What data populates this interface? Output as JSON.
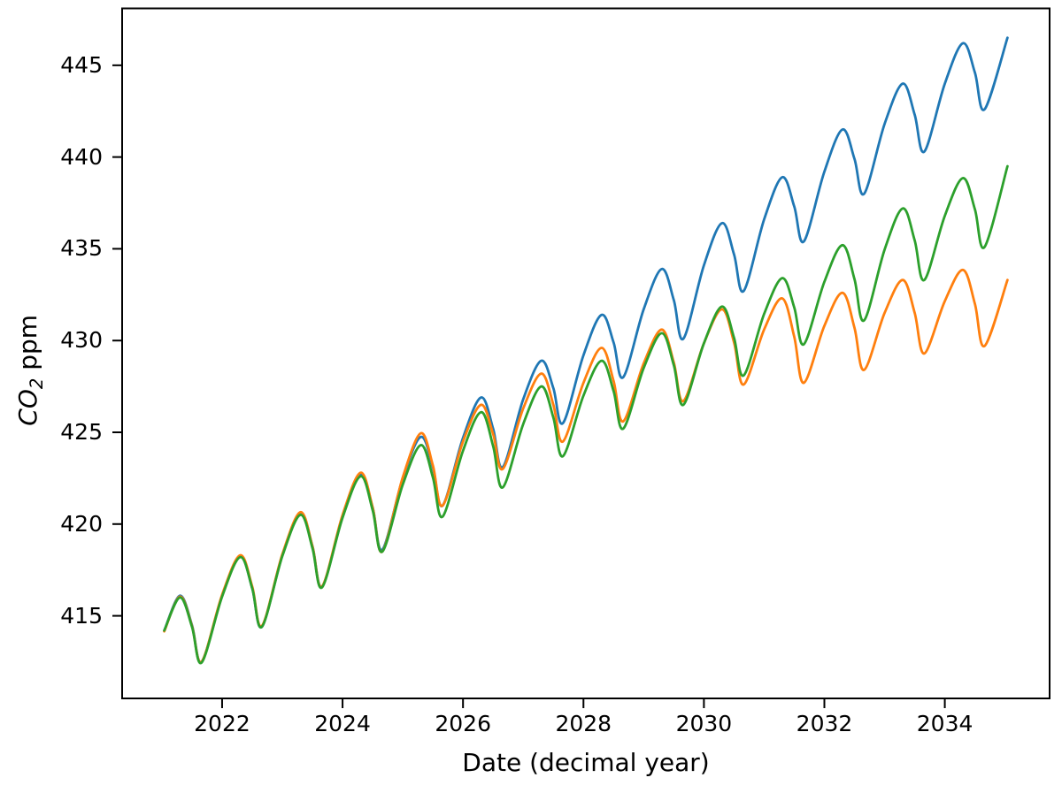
{
  "figure": {
    "xlabel": "Date (decimal year)",
    "ylabel_math": "CO",
    "ylabel_sub": "2",
    "ylabel_unit": " ppm",
    "background_color": "#ffffff",
    "spine_color": "#000000"
  },
  "chart_data": {
    "type": "line",
    "title": "",
    "xlabel": "Date (decimal year)",
    "ylabel": "CO2 ppm",
    "xlim": [
      2020.34,
      2035.74
    ],
    "ylim": [
      410.5,
      448.1
    ],
    "x_ticks": [
      2022,
      2024,
      2026,
      2028,
      2030,
      2032,
      2034
    ],
    "y_ticks": [
      415,
      420,
      425,
      430,
      435,
      440,
      445
    ],
    "grid": false,
    "legend": "none",
    "series": [
      {
        "name": "blue",
        "color": "#1f77b4",
        "points": [
          [
            2021.04,
            414.2
          ],
          [
            2021.3,
            416.1
          ],
          [
            2021.5,
            414.5
          ],
          [
            2021.66,
            412.5
          ],
          [
            2022.0,
            416.1
          ],
          [
            2022.3,
            418.25
          ],
          [
            2022.5,
            416.5
          ],
          [
            2022.66,
            414.4
          ],
          [
            2023.0,
            418.3
          ],
          [
            2023.3,
            420.6
          ],
          [
            2023.5,
            418.8
          ],
          [
            2023.66,
            416.6
          ],
          [
            2024.0,
            420.4
          ],
          [
            2024.3,
            422.7
          ],
          [
            2024.5,
            420.9
          ],
          [
            2024.66,
            418.6
          ],
          [
            2025.0,
            422.5
          ],
          [
            2025.3,
            424.75
          ],
          [
            2025.5,
            423.1
          ],
          [
            2025.66,
            421.0
          ],
          [
            2026.0,
            424.7
          ],
          [
            2026.3,
            426.9
          ],
          [
            2026.5,
            425.2
          ],
          [
            2026.66,
            423.1
          ],
          [
            2027.0,
            426.8
          ],
          [
            2027.3,
            428.9
          ],
          [
            2027.5,
            427.4
          ],
          [
            2027.66,
            425.5
          ],
          [
            2028.0,
            429.2
          ],
          [
            2028.3,
            431.4
          ],
          [
            2028.5,
            429.9
          ],
          [
            2028.66,
            428.0
          ],
          [
            2029.0,
            431.7
          ],
          [
            2029.3,
            433.9
          ],
          [
            2029.5,
            432.2
          ],
          [
            2029.66,
            430.1
          ],
          [
            2030.0,
            434.1
          ],
          [
            2030.3,
            436.4
          ],
          [
            2030.5,
            434.7
          ],
          [
            2030.66,
            432.7
          ],
          [
            2031.0,
            436.6
          ],
          [
            2031.3,
            438.9
          ],
          [
            2031.5,
            437.3
          ],
          [
            2031.66,
            435.4
          ],
          [
            2032.0,
            439.2
          ],
          [
            2032.3,
            441.5
          ],
          [
            2032.5,
            439.9
          ],
          [
            2032.66,
            438.0
          ],
          [
            2033.0,
            441.8
          ],
          [
            2033.3,
            444.0
          ],
          [
            2033.5,
            442.3
          ],
          [
            2033.66,
            440.3
          ],
          [
            2034.0,
            444.0
          ],
          [
            2034.3,
            446.2
          ],
          [
            2034.5,
            444.6
          ],
          [
            2034.66,
            442.6
          ],
          [
            2035.04,
            446.5
          ]
        ]
      },
      {
        "name": "orange",
        "color": "#ff7f0e",
        "points": [
          [
            2021.04,
            414.15
          ],
          [
            2021.3,
            416.05
          ],
          [
            2021.5,
            414.45
          ],
          [
            2021.66,
            412.5
          ],
          [
            2022.0,
            416.15
          ],
          [
            2022.3,
            418.3
          ],
          [
            2022.5,
            416.6
          ],
          [
            2022.66,
            414.45
          ],
          [
            2023.0,
            418.35
          ],
          [
            2023.3,
            420.65
          ],
          [
            2023.5,
            418.8
          ],
          [
            2023.66,
            416.6
          ],
          [
            2024.0,
            420.5
          ],
          [
            2024.3,
            422.8
          ],
          [
            2024.5,
            420.9
          ],
          [
            2024.66,
            418.5
          ],
          [
            2025.0,
            422.55
          ],
          [
            2025.3,
            424.95
          ],
          [
            2025.5,
            423.2
          ],
          [
            2025.66,
            421.0
          ],
          [
            2026.0,
            424.5
          ],
          [
            2026.3,
            426.5
          ],
          [
            2026.5,
            424.9
          ],
          [
            2026.66,
            423.0
          ],
          [
            2027.0,
            426.3
          ],
          [
            2027.3,
            428.2
          ],
          [
            2027.5,
            426.5
          ],
          [
            2027.66,
            424.5
          ],
          [
            2028.0,
            427.7
          ],
          [
            2028.3,
            429.6
          ],
          [
            2028.5,
            427.8
          ],
          [
            2028.66,
            425.6
          ],
          [
            2029.0,
            428.75
          ],
          [
            2029.3,
            430.6
          ],
          [
            2029.5,
            428.8
          ],
          [
            2029.66,
            426.7
          ],
          [
            2030.0,
            429.85
          ],
          [
            2030.3,
            431.7
          ],
          [
            2030.5,
            429.9
          ],
          [
            2030.66,
            427.6
          ],
          [
            2031.0,
            430.6
          ],
          [
            2031.3,
            432.3
          ],
          [
            2031.5,
            430.2
          ],
          [
            2031.66,
            427.7
          ],
          [
            2032.0,
            430.8
          ],
          [
            2032.3,
            432.6
          ],
          [
            2032.5,
            430.7
          ],
          [
            2032.66,
            428.4
          ],
          [
            2033.0,
            431.5
          ],
          [
            2033.3,
            433.3
          ],
          [
            2033.5,
            431.5
          ],
          [
            2033.66,
            429.3
          ],
          [
            2034.0,
            432.15
          ],
          [
            2034.3,
            433.85
          ],
          [
            2034.5,
            432.0
          ],
          [
            2034.66,
            429.7
          ],
          [
            2035.04,
            433.3
          ]
        ]
      },
      {
        "name": "green",
        "color": "#2ca02c",
        "points": [
          [
            2021.04,
            414.2
          ],
          [
            2021.3,
            416.0
          ],
          [
            2021.5,
            414.4
          ],
          [
            2021.66,
            412.45
          ],
          [
            2022.0,
            416.05
          ],
          [
            2022.3,
            418.2
          ],
          [
            2022.5,
            416.5
          ],
          [
            2022.66,
            414.4
          ],
          [
            2023.0,
            418.25
          ],
          [
            2023.3,
            420.5
          ],
          [
            2023.5,
            418.7
          ],
          [
            2023.66,
            416.55
          ],
          [
            2024.0,
            420.35
          ],
          [
            2024.3,
            422.6
          ],
          [
            2024.5,
            420.75
          ],
          [
            2024.66,
            418.5
          ],
          [
            2025.0,
            422.15
          ],
          [
            2025.3,
            424.3
          ],
          [
            2025.5,
            422.55
          ],
          [
            2025.66,
            420.4
          ],
          [
            2026.0,
            424.0
          ],
          [
            2026.3,
            426.1
          ],
          [
            2026.5,
            424.25
          ],
          [
            2026.66,
            422.0
          ],
          [
            2027.0,
            425.45
          ],
          [
            2027.3,
            427.5
          ],
          [
            2027.5,
            425.8
          ],
          [
            2027.66,
            423.7
          ],
          [
            2028.0,
            427.0
          ],
          [
            2028.3,
            428.9
          ],
          [
            2028.5,
            427.25
          ],
          [
            2028.66,
            425.2
          ],
          [
            2029.0,
            428.5
          ],
          [
            2029.3,
            430.4
          ],
          [
            2029.5,
            428.65
          ],
          [
            2029.66,
            426.5
          ],
          [
            2030.0,
            429.85
          ],
          [
            2030.3,
            431.85
          ],
          [
            2030.5,
            430.15
          ],
          [
            2030.66,
            428.1
          ],
          [
            2031.0,
            431.45
          ],
          [
            2031.3,
            433.4
          ],
          [
            2031.5,
            431.8
          ],
          [
            2031.66,
            429.8
          ],
          [
            2032.0,
            433.2
          ],
          [
            2032.3,
            435.2
          ],
          [
            2032.5,
            433.35
          ],
          [
            2032.66,
            431.1
          ],
          [
            2033.0,
            434.95
          ],
          [
            2033.3,
            437.2
          ],
          [
            2033.5,
            435.45
          ],
          [
            2033.66,
            433.3
          ],
          [
            2034.0,
            436.8
          ],
          [
            2034.3,
            438.85
          ],
          [
            2034.5,
            437.15
          ],
          [
            2034.66,
            435.1
          ],
          [
            2035.04,
            439.5
          ]
        ]
      }
    ]
  }
}
